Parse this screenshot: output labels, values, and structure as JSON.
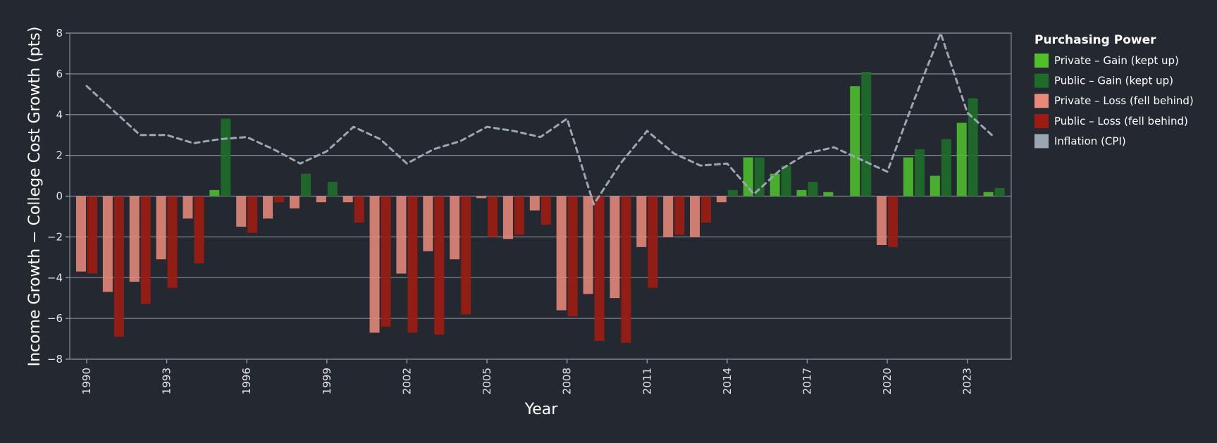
{
  "chart_data": {
    "type": "bar",
    "title": "",
    "xlabel": "Year",
    "ylabel": "Income Growth − College Cost Growth (pts)",
    "ylim": [
      -8,
      8
    ],
    "yticks": [
      "−8",
      "−6",
      "−4",
      "−2",
      "0",
      "2",
      "4",
      "6",
      "8"
    ],
    "grid": true,
    "legend": {
      "title": "Purchasing Power",
      "position": "right",
      "entries": [
        {
          "label": "Private – Gain (kept up)",
          "color": "#4fbf2c"
        },
        {
          "label": "Public – Gain (kept up)",
          "color": "#1f6b2a"
        },
        {
          "label": "Private – Loss (fell behind)",
          "color": "#e8897a"
        },
        {
          "label": "Public – Loss (fell behind)",
          "color": "#9b1c14"
        },
        {
          "label": "Inflation (CPI)",
          "color": "#9aa7b3"
        }
      ]
    },
    "colors": {
      "private_gain": "#4fbf2c",
      "public_gain": "#1f6b2a",
      "private_loss": "#e8897a",
      "public_loss": "#9b1c14",
      "inflation": "#9aa7b3"
    },
    "x": [
      1990,
      1991,
      1992,
      1993,
      1994,
      1995,
      1996,
      1997,
      1998,
      1999,
      2000,
      2001,
      2002,
      2003,
      2004,
      2005,
      2006,
      2007,
      2008,
      2009,
      2010,
      2011,
      2012,
      2013,
      2014,
      2015,
      2016,
      2017,
      2018,
      2019,
      2020,
      2021,
      2022,
      2023,
      2024
    ],
    "xticks": [
      "1990",
      "1993",
      "1996",
      "1999",
      "2002",
      "2005",
      "2008",
      "2011",
      "2014",
      "2017",
      "2020",
      "2023"
    ],
    "series": [
      {
        "name": "Private",
        "values": [
          -3.7,
          -4.7,
          -4.2,
          -3.1,
          -1.1,
          0.3,
          -1.5,
          -1.1,
          -0.6,
          -0.3,
          -0.3,
          -6.7,
          -3.8,
          -2.7,
          -3.1,
          -0.1,
          -2.1,
          -0.7,
          -5.6,
          -4.8,
          -5.0,
          -2.5,
          -2.0,
          -2.0,
          -0.3,
          1.9,
          1.1,
          0.3,
          0.2,
          5.4,
          -2.4,
          1.9,
          1.0,
          3.6,
          0.2
        ]
      },
      {
        "name": "Public",
        "values": [
          -3.8,
          -6.9,
          -5.3,
          -4.5,
          -3.3,
          3.8,
          -1.8,
          -0.3,
          1.1,
          0.7,
          -1.3,
          -6.4,
          -6.7,
          -6.8,
          -5.8,
          -2.0,
          -1.9,
          -1.4,
          -5.9,
          -7.1,
          -7.2,
          -4.5,
          -1.9,
          -1.3,
          0.3,
          1.9,
          1.5,
          0.7,
          0.0,
          6.1,
          -2.5,
          2.3,
          2.8,
          4.8,
          0.4
        ]
      },
      {
        "name": "Inflation (CPI)",
        "values": [
          5.4,
          4.2,
          3.0,
          3.0,
          2.6,
          2.8,
          2.9,
          2.3,
          1.6,
          2.2,
          3.4,
          2.8,
          1.6,
          2.3,
          2.7,
          3.4,
          3.2,
          2.9,
          3.8,
          -0.4,
          1.6,
          3.2,
          2.1,
          1.5,
          1.6,
          0.1,
          1.3,
          2.1,
          2.4,
          1.8,
          1.2,
          4.7,
          8.0,
          4.1,
          2.9
        ]
      }
    ]
  }
}
